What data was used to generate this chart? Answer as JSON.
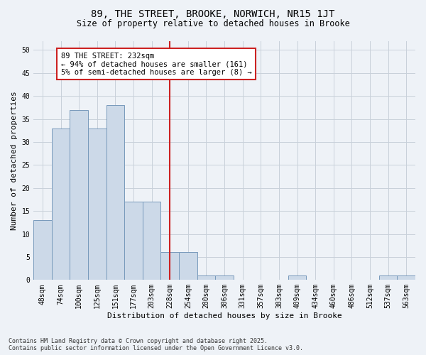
{
  "title1": "89, THE STREET, BROOKE, NORWICH, NR15 1JT",
  "title2": "Size of property relative to detached houses in Brooke",
  "xlabel": "Distribution of detached houses by size in Brooke",
  "ylabel": "Number of detached properties",
  "categories": [
    "48sqm",
    "74sqm",
    "100sqm",
    "125sqm",
    "151sqm",
    "177sqm",
    "203sqm",
    "228sqm",
    "254sqm",
    "280sqm",
    "306sqm",
    "331sqm",
    "357sqm",
    "383sqm",
    "409sqm",
    "434sqm",
    "460sqm",
    "486sqm",
    "512sqm",
    "537sqm",
    "563sqm"
  ],
  "values": [
    13,
    33,
    37,
    33,
    38,
    17,
    17,
    6,
    6,
    1,
    1,
    0,
    0,
    0,
    1,
    0,
    0,
    0,
    0,
    1,
    1
  ],
  "bar_color": "#ccd9e8",
  "bar_edge_color": "#7799bb",
  "vline_x_index": 7,
  "vline_color": "#cc2222",
  "annotation_text": "89 THE STREET: 232sqm\n← 94% of detached houses are smaller (161)\n5% of semi-detached houses are larger (8) →",
  "annotation_box_color": "#ffffff",
  "annotation_box_edge": "#cc2222",
  "ylim": [
    0,
    52
  ],
  "yticks": [
    0,
    5,
    10,
    15,
    20,
    25,
    30,
    35,
    40,
    45,
    50
  ],
  "footnote": "Contains HM Land Registry data © Crown copyright and database right 2025.\nContains public sector information licensed under the Open Government Licence v3.0.",
  "bg_color": "#eef2f7",
  "grid_color": "#c8d0da",
  "title1_fontsize": 10,
  "title2_fontsize": 8.5,
  "xlabel_fontsize": 8,
  "ylabel_fontsize": 8,
  "tick_fontsize": 7,
  "annot_fontsize": 7.5,
  "footnote_fontsize": 6
}
